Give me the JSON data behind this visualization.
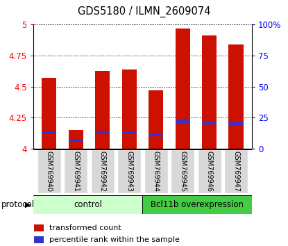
{
  "title": "GDS5180 / ILMN_2609074",
  "samples": [
    "GSM769940",
    "GSM769941",
    "GSM769942",
    "GSM769943",
    "GSM769944",
    "GSM769945",
    "GSM769946",
    "GSM769947"
  ],
  "transformed_count": [
    4.57,
    4.15,
    4.63,
    4.64,
    4.47,
    4.97,
    4.91,
    4.84
  ],
  "percentile_rank": [
    13,
    7,
    13,
    13,
    11,
    22,
    21,
    20
  ],
  "ylim": [
    4.0,
    5.0
  ],
  "yticks": [
    4.0,
    4.25,
    4.5,
    4.75,
    5.0
  ],
  "ytick_labels": [
    "4",
    "4.25",
    "4.5",
    "4.75",
    "5"
  ],
  "right_yticks": [
    0,
    25,
    50,
    75,
    100
  ],
  "right_ytick_labels": [
    "0",
    "25",
    "50",
    "75",
    "100%"
  ],
  "bar_color": "#cc1100",
  "blue_color": "#3333cc",
  "bar_width": 0.55,
  "control_color": "#ccffcc",
  "bcl_color": "#44cc44",
  "control_label": "control",
  "bcl_label": "Bcl11b overexpression",
  "protocol_label": "protocol",
  "legend_red": "transformed count",
  "legend_blue": "percentile rank within the sample",
  "bg_color": "#d8d8d8"
}
